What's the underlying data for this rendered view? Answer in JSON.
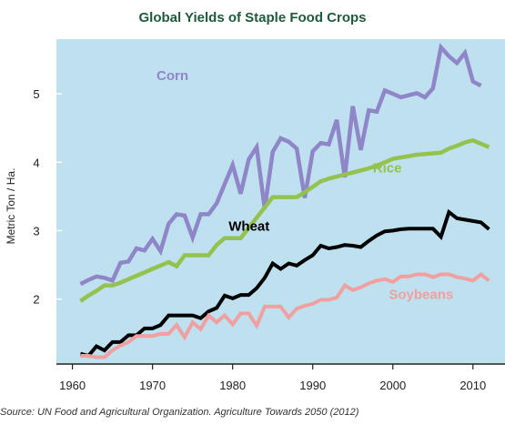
{
  "chart_data": {
    "type": "line",
    "title": "Global Yields of Staple Food Crops",
    "ylabel": "Metric Ton / Ha.",
    "xlabel": "",
    "xlim": [
      1958,
      2014
    ],
    "ylim": [
      1.05,
      5.8
    ],
    "x_ticks": [
      1960,
      1970,
      1980,
      1990,
      2000,
      2010
    ],
    "y_ticks": [
      2,
      3,
      4,
      5
    ],
    "source": "Source: UN Food and Agricultural Organization. Agriculture Towards 2050 (2012)",
    "x": [
      1961,
      1962,
      1963,
      1964,
      1965,
      1966,
      1967,
      1968,
      1969,
      1970,
      1971,
      1972,
      1973,
      1974,
      1975,
      1976,
      1977,
      1978,
      1979,
      1980,
      1981,
      1982,
      1983,
      1984,
      1985,
      1986,
      1987,
      1988,
      1989,
      1990,
      1991,
      1992,
      1993,
      1994,
      1995,
      1996,
      1997,
      1998,
      1999,
      2000,
      2001,
      2002,
      2003,
      2004,
      2005,
      2006,
      2007,
      2008,
      2009,
      2010,
      2011,
      2012
    ],
    "series": [
      {
        "name": "Corn",
        "color": "#8f86c9",
        "values": [
          2.22,
          2.28,
          2.33,
          2.31,
          2.27,
          2.53,
          2.55,
          2.74,
          2.71,
          2.88,
          2.7,
          3.1,
          3.24,
          3.22,
          2.9,
          3.24,
          3.24,
          3.4,
          3.68,
          3.96,
          3.54,
          4.04,
          4.22,
          3.32,
          4.15,
          4.35,
          4.3,
          4.2,
          3.48,
          4.16,
          4.28,
          4.26,
          4.62,
          3.78,
          4.82,
          4.18,
          4.76,
          4.74,
          5.05,
          5.0,
          4.95,
          4.98,
          5.01,
          4.95,
          5.08,
          5.68,
          5.55,
          5.45,
          5.6,
          5.18,
          5.12,
          null
        ]
      },
      {
        "name": "Rice",
        "color": "#93c24e",
        "values": [
          1.97,
          2.05,
          2.12,
          2.2,
          2.2,
          2.24,
          2.29,
          2.34,
          2.39,
          2.44,
          2.49,
          2.54,
          2.48,
          2.64,
          2.64,
          2.64,
          2.64,
          2.79,
          2.89,
          2.89,
          2.89,
          3.04,
          3.19,
          3.34,
          3.49,
          3.49,
          3.49,
          3.49,
          3.56,
          3.64,
          3.72,
          3.76,
          3.79,
          3.82,
          3.85,
          3.88,
          3.91,
          3.95,
          4.0,
          4.05,
          4.07,
          4.09,
          4.11,
          4.12,
          4.13,
          4.14,
          4.2,
          4.24,
          4.29,
          4.32,
          4.27,
          4.22
        ]
      },
      {
        "name": "Wheat",
        "color": "#000000",
        "values": [
          1.2,
          1.17,
          1.31,
          1.25,
          1.37,
          1.37,
          1.47,
          1.47,
          1.57,
          1.57,
          1.62,
          1.76,
          1.76,
          1.76,
          1.76,
          1.72,
          1.82,
          1.87,
          2.05,
          2.01,
          2.06,
          2.06,
          2.16,
          2.31,
          2.52,
          2.44,
          2.52,
          2.49,
          2.57,
          2.64,
          2.78,
          2.74,
          2.76,
          2.79,
          2.78,
          2.76,
          2.85,
          2.93,
          2.99,
          3.0,
          3.02,
          3.03,
          3.03,
          3.03,
          3.03,
          2.91,
          3.27,
          3.18,
          3.16,
          3.14,
          3.12,
          3.02
        ]
      },
      {
        "name": "Soybeans",
        "color": "#f0a0a0",
        "values": [
          1.17,
          1.17,
          1.15,
          1.15,
          1.25,
          1.32,
          1.37,
          1.46,
          1.46,
          1.46,
          1.49,
          1.49,
          1.62,
          1.44,
          1.66,
          1.56,
          1.76,
          1.66,
          1.76,
          1.63,
          1.79,
          1.79,
          1.61,
          1.89,
          1.89,
          1.89,
          1.73,
          1.86,
          1.9,
          1.93,
          1.99,
          1.99,
          2.02,
          2.2,
          2.13,
          2.17,
          2.23,
          2.27,
          2.29,
          2.25,
          2.33,
          2.33,
          2.36,
          2.36,
          2.32,
          2.36,
          2.36,
          2.32,
          2.3,
          2.27,
          2.36,
          2.27
        ]
      }
    ],
    "legend_placement": "inline labels next to series",
    "grid": false,
    "plot_background": "#bfe0ee",
    "axis_color": "#222222"
  }
}
